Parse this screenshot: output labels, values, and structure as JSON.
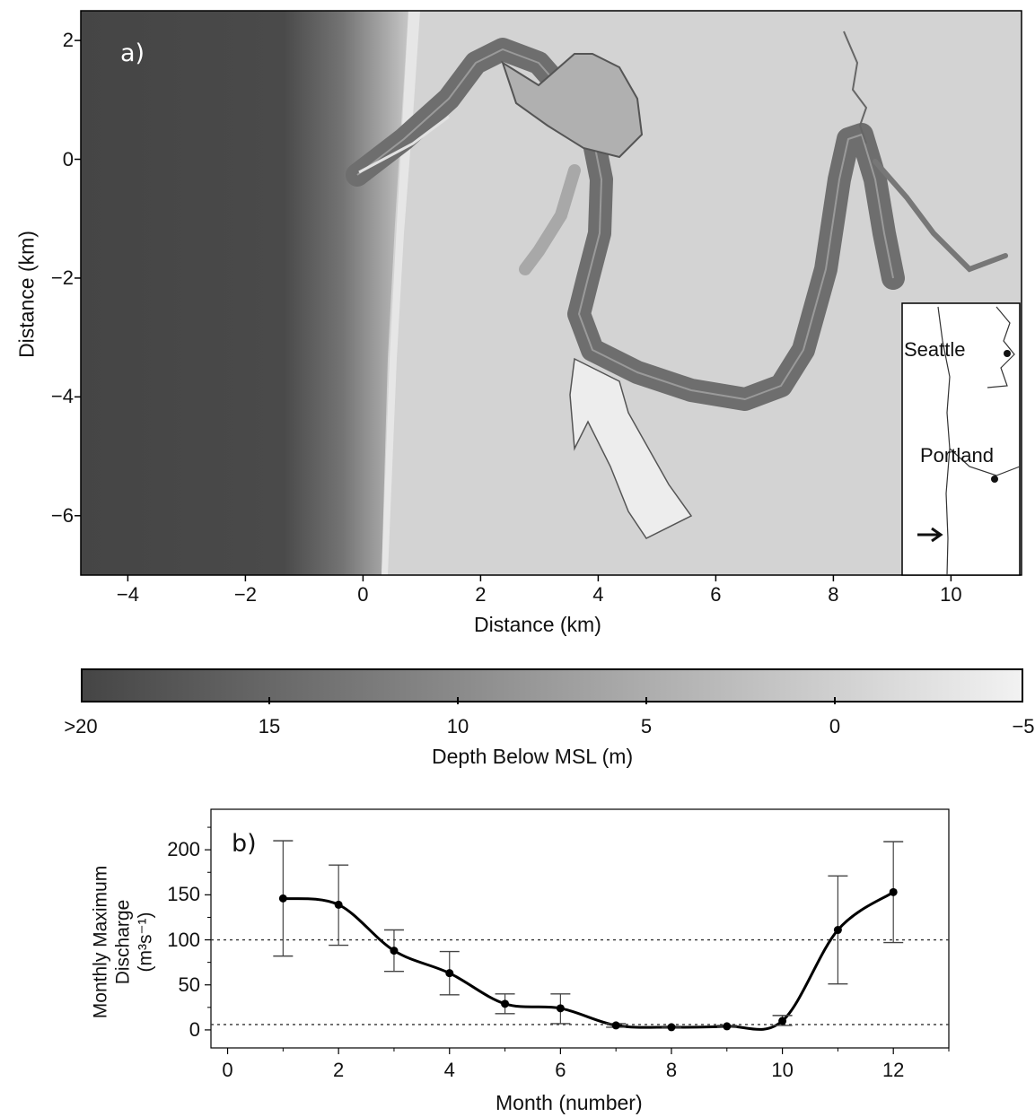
{
  "chart_data": [
    {
      "type": "heatmap",
      "panel_label": "a)",
      "xlabel": "Distance (km)",
      "ylabel": "Distance (km)",
      "xlim": [
        -4.8,
        11.2
      ],
      "ylim": [
        -7,
        2.5
      ],
      "x_ticks": [
        -4,
        -2,
        0,
        2,
        4,
        6,
        8,
        10
      ],
      "y_ticks": [
        2,
        0,
        -2,
        -4,
        -6
      ],
      "colorbar": {
        "title": "Depth Below MSL (m)",
        "tick_labels": [
          ">20",
          "15",
          "10",
          "5",
          "0",
          "−5"
        ],
        "range": [
          20,
          -5
        ],
        "color_low_depth": "#f2f2f2",
        "color_high_depth": "#454545"
      },
      "inset": {
        "labels": [
          "Seattle",
          "Portland"
        ],
        "marker": "arrow"
      }
    },
    {
      "type": "line",
      "panel_label": "b)",
      "xlabel": "Month (number)",
      "ylabel_lines": [
        "Monthly Maximum",
        "Discharge",
        "(m³s⁻¹)"
      ],
      "xlim": [
        -0.3,
        13
      ],
      "ylim": [
        -20,
        245
      ],
      "x_ticks": [
        0,
        2,
        4,
        6,
        8,
        10,
        12
      ],
      "y_ticks": [
        0,
        50,
        100,
        150,
        200
      ],
      "reference_lines": [
        100,
        6
      ],
      "series": [
        {
          "x": [
            1,
            2,
            3,
            4,
            5,
            6,
            7,
            8,
            9,
            10,
            11,
            12
          ],
          "values": [
            146,
            139,
            88,
            63,
            29,
            24,
            5,
            3,
            4,
            10,
            111,
            153
          ],
          "error_low": [
            82,
            94,
            65,
            39,
            18,
            7,
            3,
            2,
            3,
            5,
            51,
            97
          ],
          "error_high": [
            210,
            183,
            111,
            87,
            40,
            40,
            7,
            4,
            5,
            16,
            171,
            209
          ]
        }
      ]
    }
  ]
}
